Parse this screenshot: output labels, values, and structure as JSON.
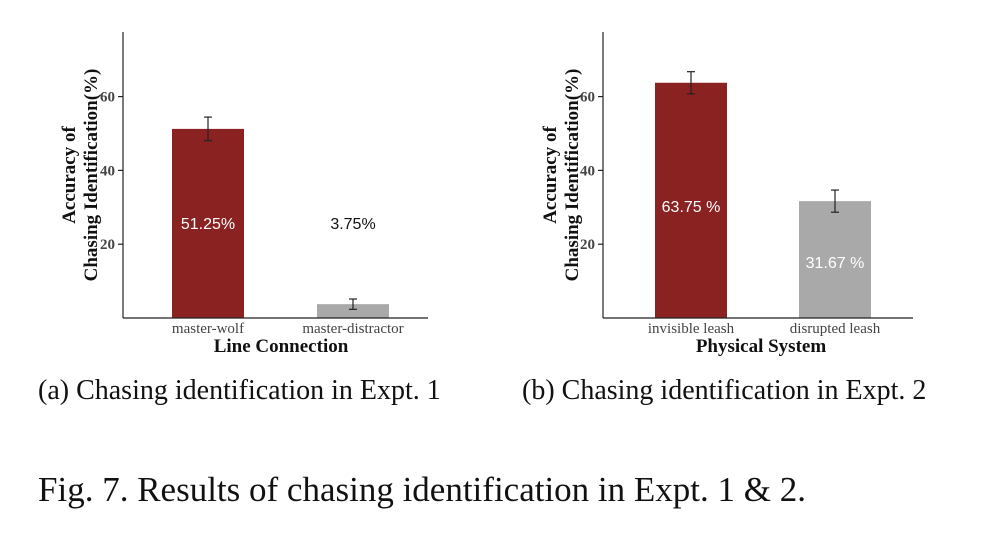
{
  "chart_data": [
    {
      "type": "bar",
      "categories": [
        "master-wolf",
        "master-distractor"
      ],
      "values": [
        51.25,
        3.75
      ],
      "error": [
        3.2,
        1.4
      ],
      "data_labels": [
        "51.25%",
        "3.75%"
      ],
      "title": "",
      "xlabel": "Line Connection",
      "ylabel_lines": [
        "Accuracy of",
        "Chasing Identification(%)"
      ],
      "yticks": [
        "20",
        "40",
        "60"
      ],
      "ylim": [
        0,
        78
      ],
      "grid": false,
      "colors": [
        "#8b2222",
        "#a9a9a9"
      ]
    },
    {
      "type": "bar",
      "categories": [
        "invisible leash",
        "disrupted leash"
      ],
      "values": [
        63.75,
        31.67
      ],
      "error": [
        3.0,
        3.0
      ],
      "data_labels": [
        "63.75 %",
        "31.67 %"
      ],
      "title": "",
      "xlabel": "Physical System",
      "ylabel_lines": [
        "Accuracy of",
        "Chasing Identification(%)"
      ],
      "yticks": [
        "20",
        "40",
        "60"
      ],
      "ylim": [
        0,
        78
      ],
      "grid": false,
      "colors": [
        "#8b2222",
        "#a9a9a9"
      ]
    }
  ],
  "captions": {
    "a": "(a) Chasing identification in Expt. 1",
    "b": "(b) Chasing identification in Expt. 2",
    "figure": "Fig. 7. Results of chasing identification in Expt. 1 & 2."
  }
}
